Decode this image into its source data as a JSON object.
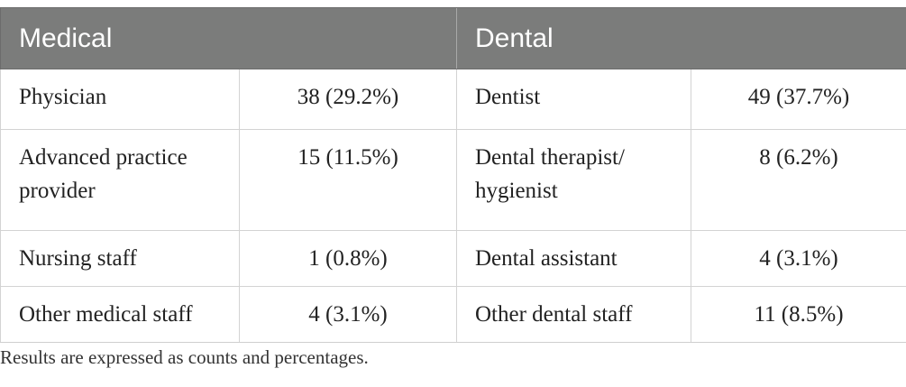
{
  "table": {
    "headers": [
      "Medical",
      "Dental"
    ],
    "rows": [
      {
        "medical_role": "Physician",
        "medical_value": "38 (29.2%)",
        "dental_role": "Dentist",
        "dental_value": "49 (37.7%)"
      },
      {
        "medical_role": "Advanced practice provider",
        "medical_value": "15 (11.5%)",
        "dental_role": "Dental therapist/ hygienist",
        "dental_value": "8 (6.2%)"
      },
      {
        "medical_role": "Nursing staff",
        "medical_value": "1 (0.8%)",
        "dental_role": "Dental assistant",
        "dental_value": "4 (3.1%)"
      },
      {
        "medical_role": "Other medical staff",
        "medical_value": "4 (3.1%)",
        "dental_role": "Other dental staff",
        "dental_value": "11 (8.5%)"
      }
    ]
  },
  "footnote": "Results are expressed as counts and percentages.",
  "colors": {
    "header_background": "#7b7c7b",
    "header_text": "#ffffff",
    "grid_lines": "#d3d3d3"
  }
}
